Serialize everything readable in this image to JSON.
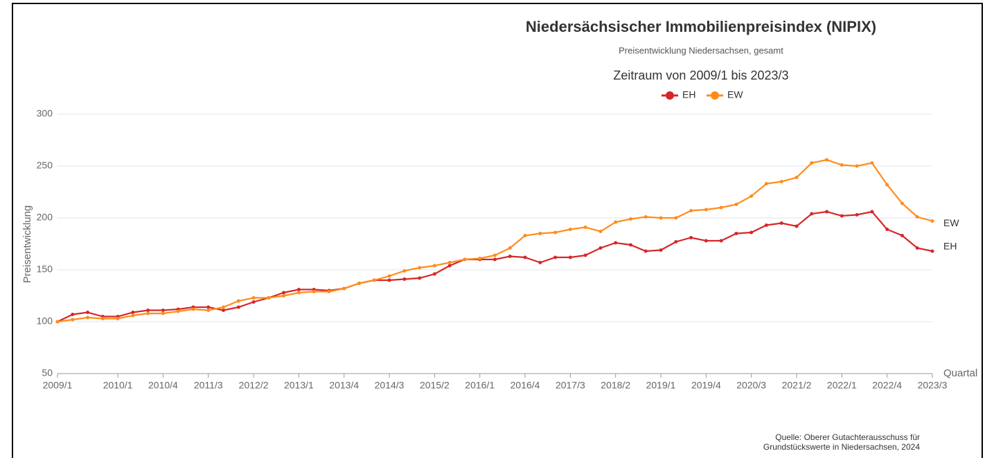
{
  "chart_data": {
    "type": "line",
    "title": "Niedersächsischer Immobilienpreisindex (NIPIX)",
    "subtitle": "Preisentwicklung Niedersachsen, gesamt",
    "period": "Zeitraum von 2009/1 bis 2023/3",
    "y_label": "Preisentwicklung",
    "x_label": "Quartal",
    "source": [
      "Quelle: Oberer Gutachterausschuss für",
      "Grundstückswerte in Niedersachsen, 2024"
    ],
    "categories": [
      "2009/1",
      null,
      null,
      null,
      "2010/1",
      null,
      null,
      "2010/4",
      null,
      null,
      "2011/3",
      null,
      null,
      "2012/2",
      null,
      null,
      "2013/1",
      null,
      null,
      "2013/4",
      null,
      null,
      "2014/3",
      null,
      null,
      "2015/2",
      null,
      null,
      "2016/1",
      null,
      null,
      "2016/4",
      null,
      null,
      "2017/3",
      null,
      null,
      "2018/2",
      null,
      null,
      "2019/1",
      null,
      null,
      "2019/4",
      null,
      null,
      "2020/3",
      null,
      null,
      "2021/2",
      null,
      null,
      "2022/1",
      null,
      null,
      "2022/4",
      null,
      null,
      "2023/3"
    ],
    "series": [
      {
        "name": "EH",
        "color": "#d62728",
        "values": [
          100,
          107,
          109,
          105,
          105,
          109,
          111,
          111,
          112,
          114,
          114,
          111,
          114,
          119,
          123,
          128,
          131,
          131,
          130,
          132,
          137,
          140,
          140,
          141,
          142,
          146,
          154,
          160,
          160,
          160,
          163,
          162,
          157,
          162,
          162,
          164,
          171,
          176,
          174,
          168,
          169,
          177,
          181,
          178,
          178,
          185,
          186,
          193,
          195,
          192,
          204,
          206,
          202,
          203,
          206,
          189,
          183,
          171,
          168
        ]
      },
      {
        "name": "EW",
        "color": "#ff8c1a",
        "values": [
          100,
          102,
          104,
          103,
          103,
          106,
          108,
          108,
          110,
          112,
          111,
          114,
          120,
          123,
          123,
          125,
          128,
          129,
          129,
          132,
          137,
          140,
          144,
          149,
          152,
          154,
          157,
          160,
          161,
          164,
          171,
          183,
          185,
          186,
          189,
          191,
          187,
          196,
          199,
          201,
          200,
          200,
          207,
          208,
          210,
          213,
          221,
          233,
          235,
          239,
          253,
          256,
          251,
          250,
          253,
          232,
          214,
          201,
          197
        ]
      }
    ],
    "ylim": [
      50,
      300
    ],
    "yticks": [
      50,
      100,
      150,
      200,
      250,
      300
    ],
    "grid": true
  }
}
